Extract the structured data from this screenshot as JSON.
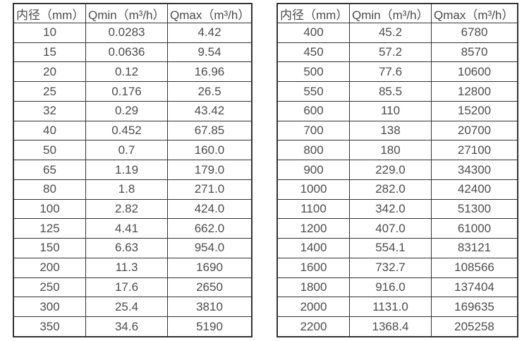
{
  "chart_data": [
    {
      "type": "table",
      "columns": [
        "内径（mm）",
        "Qmin（m³/h）",
        "Qmax（m³/h）"
      ],
      "rows": [
        [
          "10",
          "0.0283",
          "4.42"
        ],
        [
          "15",
          "0.0636",
          "9.54"
        ],
        [
          "20",
          "0.12",
          "16.96"
        ],
        [
          "25",
          "0.176",
          "26.5"
        ],
        [
          "32",
          "0.29",
          "43.42"
        ],
        [
          "40",
          "0.452",
          "67.85"
        ],
        [
          "50",
          "0.7",
          "160.0"
        ],
        [
          "65",
          "1.19",
          "179.0"
        ],
        [
          "80",
          "1.8",
          "271.0"
        ],
        [
          "100",
          "2.82",
          "424.0"
        ],
        [
          "125",
          "4.41",
          "662.0"
        ],
        [
          "150",
          "6.63",
          "954.0"
        ],
        [
          "200",
          "11.3",
          "1690"
        ],
        [
          "250",
          "17.6",
          "2650"
        ],
        [
          "300",
          "25.4",
          "3810"
        ],
        [
          "350",
          "34.6",
          "5190"
        ]
      ]
    },
    {
      "type": "table",
      "columns": [
        "内径（mm）",
        "Qmin（m³/h）",
        "Qmax（m³/h）"
      ],
      "rows": [
        [
          "400",
          "45.2",
          "6780"
        ],
        [
          "450",
          "57.2",
          "8570"
        ],
        [
          "500",
          "77.6",
          "10600"
        ],
        [
          "550",
          "85.5",
          "12800"
        ],
        [
          "600",
          "110",
          "15200"
        ],
        [
          "700",
          "138",
          "20700"
        ],
        [
          "800",
          "180",
          "27100"
        ],
        [
          "900",
          "229.0",
          "34300"
        ],
        [
          "1000",
          "282.0",
          "42400"
        ],
        [
          "1100",
          "342.0",
          "51300"
        ],
        [
          "1200",
          "407.0",
          "61000"
        ],
        [
          "1400",
          "554.1",
          "83121"
        ],
        [
          "1600",
          "732.7",
          "108566"
        ],
        [
          "1800",
          "916.0",
          "137404"
        ],
        [
          "2000",
          "1131.0",
          "169635"
        ],
        [
          "2200",
          "1368.4",
          "205258"
        ]
      ]
    }
  ],
  "colors": {
    "background": "#ffffff",
    "border": "#333333",
    "text": "#4d4d4d"
  }
}
